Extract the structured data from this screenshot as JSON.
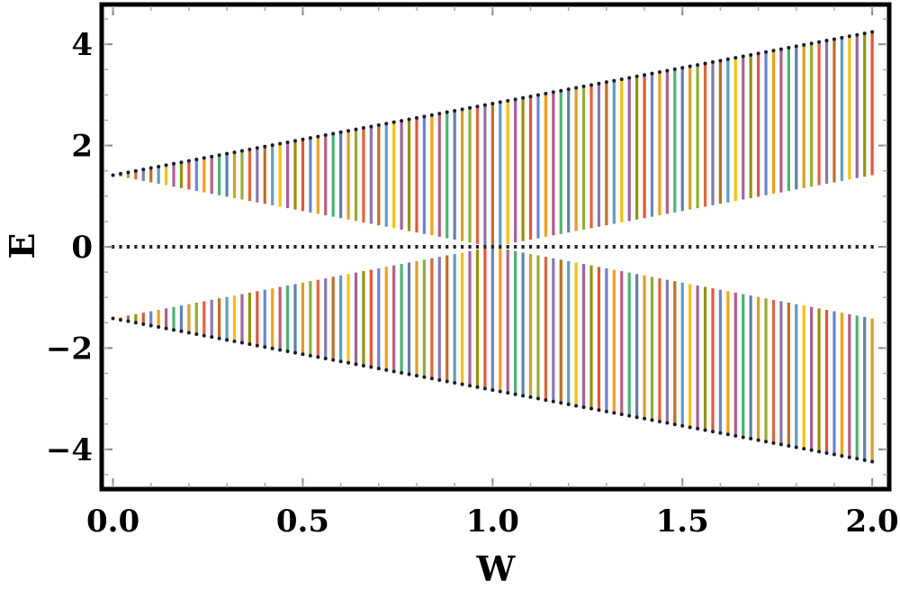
{
  "chart_data": {
    "type": "scatter",
    "title": "",
    "xlabel": "W",
    "ylabel": "E",
    "xlim": [
      -0.025,
      2.04
    ],
    "ylim": [
      -4.75,
      4.75
    ],
    "x_ticks": [
      0.0,
      0.5,
      1.0,
      1.5,
      2.0
    ],
    "x_tick_labels": [
      "0.0",
      "0.5",
      "1.0",
      "1.5",
      "2.0"
    ],
    "y_ticks": [
      -4,
      -2,
      0,
      2,
      4
    ],
    "y_tick_labels": [
      "−4",
      "−2",
      "0",
      "2",
      "4"
    ],
    "grid": false,
    "legend": "none",
    "w_range": [
      0,
      2
    ],
    "w_step": 0.02,
    "series": [
      {
        "band": "upper",
        "min_expression": "|W - 1| * sqrt(2)",
        "max_expression": "(W + 1) * sqrt(2)"
      },
      {
        "band": "zero",
        "value": 0
      },
      {
        "band": "lower",
        "min_expression": "-(W + 1) * sqrt(2)",
        "max_expression": "-|W - 1| * sqrt(2)"
      }
    ],
    "colors": [
      "#5e81b5",
      "#e19c24",
      "#8fb032",
      "#eb6235",
      "#8778b3",
      "#c56e1a",
      "#5d9ec7",
      "#ffbf00",
      "#a5609d",
      "#929600",
      "#e95536",
      "#6685d9",
      "#f89f13",
      "#bc5b80",
      "#47b66d"
    ]
  }
}
